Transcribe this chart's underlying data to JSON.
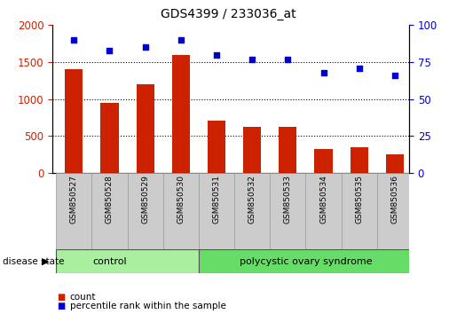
{
  "title": "GDS4399 / 233036_at",
  "samples": [
    "GSM850527",
    "GSM850528",
    "GSM850529",
    "GSM850530",
    "GSM850531",
    "GSM850532",
    "GSM850533",
    "GSM850534",
    "GSM850535",
    "GSM850536"
  ],
  "counts": [
    1400,
    950,
    1200,
    1600,
    700,
    620,
    620,
    320,
    340,
    250
  ],
  "percentiles": [
    90,
    83,
    85,
    90,
    80,
    77,
    77,
    68,
    71,
    66
  ],
  "bar_color": "#cc2200",
  "dot_color": "#0000cc",
  "ylim_left": [
    0,
    2000
  ],
  "ylim_right": [
    0,
    100
  ],
  "yticks_left": [
    0,
    500,
    1000,
    1500,
    2000
  ],
  "yticks_right": [
    0,
    25,
    50,
    75,
    100
  ],
  "grid_lines": [
    500,
    1000,
    1500
  ],
  "control_color": "#aaeea0",
  "pcos_color": "#66dd66",
  "sample_box_color": "#cccccc",
  "n_control": 4,
  "n_pcos": 6,
  "disease_state_label": "disease state",
  "control_label": "control",
  "pcos_label": "polycystic ovary syndrome",
  "legend_count_label": "count",
  "legend_percentile_label": "percentile rank within the sample",
  "bar_width": 0.5,
  "xlim": [
    -0.6,
    9.4
  ]
}
